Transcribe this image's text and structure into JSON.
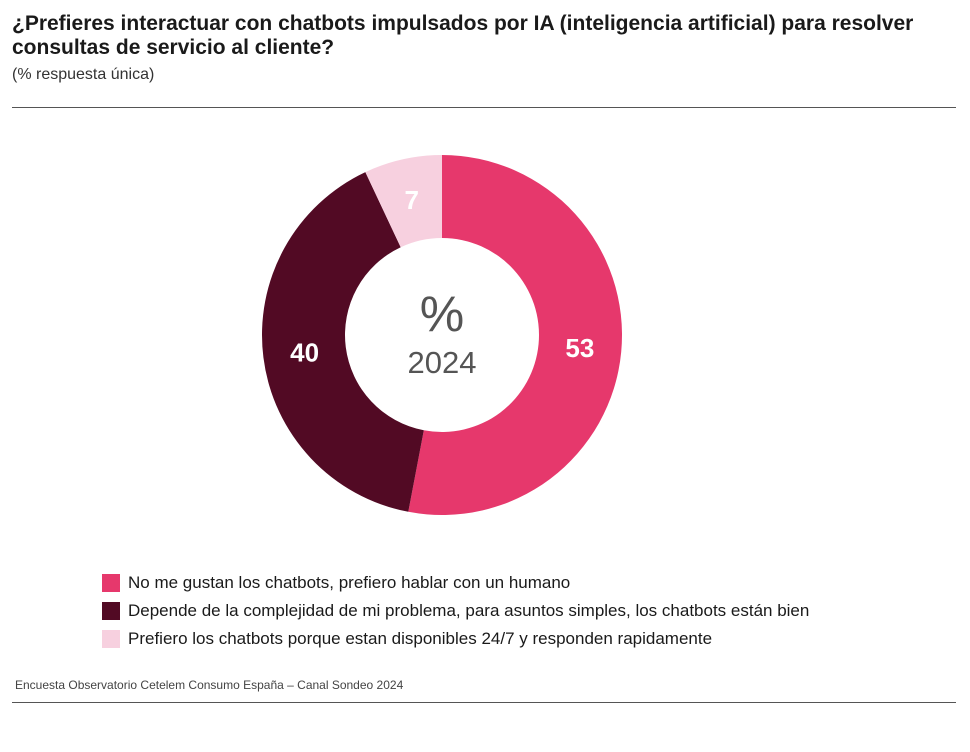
{
  "header": {
    "title": "¿Prefieres interactuar con chatbots impulsados por IA (inteligencia artificial) para resolver consultas de servicio al cliente?",
    "subtitle": "(% respuesta única)"
  },
  "footer": {
    "source": "Encuesta Observatorio Cetelem Consumo España – Canal Sondeo 2024"
  },
  "chart_data": {
    "type": "pie",
    "variant": "donut",
    "center_text": [
      "%",
      "2024"
    ],
    "slices": [
      {
        "label": "No me gustan los chatbots, prefiero hablar con un humano",
        "value": 53,
        "color": "#e6386c",
        "label_color": "#ffffff"
      },
      {
        "label": "Depende de la complejidad de mi problema, para asuntos simples, los chatbots están bien",
        "value": 40,
        "color": "#520a24",
        "label_color": "#ffffff"
      },
      {
        "label": "Prefiero los chatbots porque estan disponibles 24/7 y responden rapidamente",
        "value": 7,
        "color": "#f7d0df",
        "label_color": "#ffffff"
      }
    ],
    "legend_position": "bottom-left",
    "center_text_color": "#555555"
  }
}
